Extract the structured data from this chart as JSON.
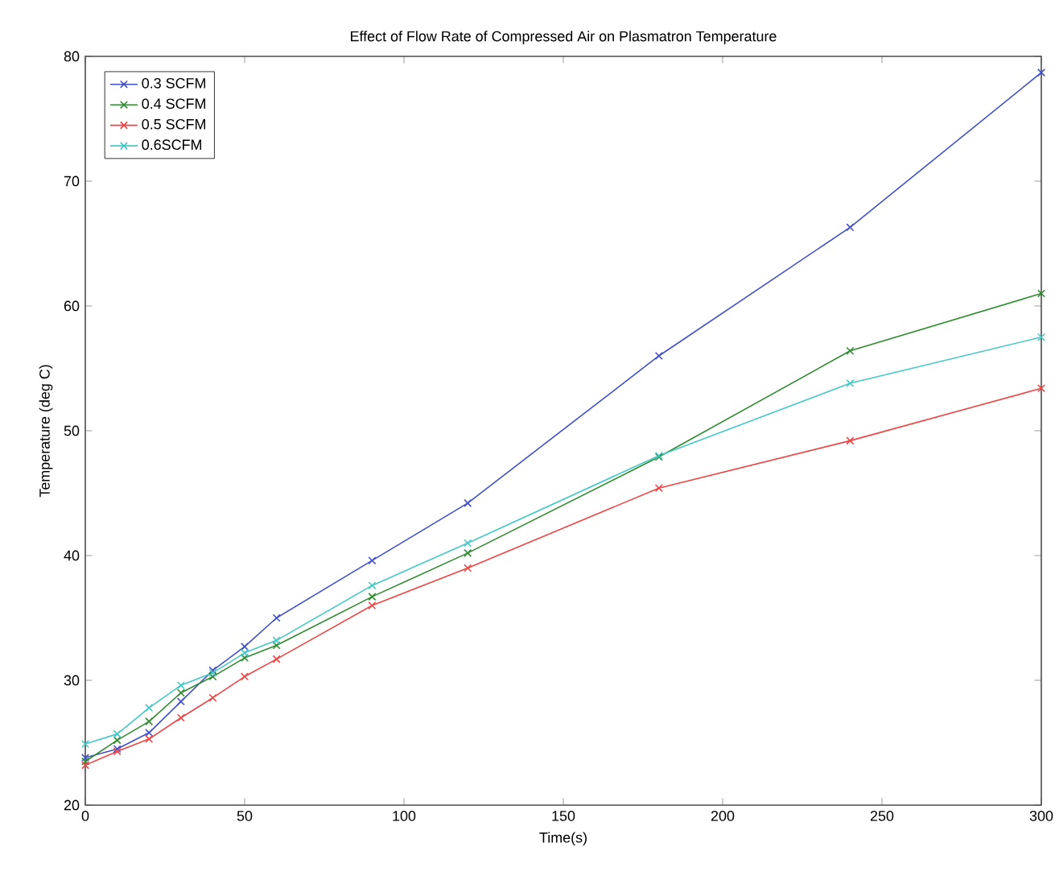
{
  "chart_data": {
    "type": "line",
    "title": "Effect of Flow Rate of Compressed Air on Plasmatron Temperature",
    "xlabel": "Time(s)",
    "ylabel": "Temperature (deg C)",
    "x": [
      0,
      10,
      20,
      30,
      40,
      50,
      60,
      90,
      120,
      180,
      240,
      300
    ],
    "series": [
      {
        "name": "0.3 SCFM",
        "color": "#4050c8",
        "values": [
          23.8,
          24.5,
          25.8,
          28.3,
          30.8,
          32.7,
          35.0,
          39.6,
          44.2,
          56.0,
          66.3,
          78.7
        ]
      },
      {
        "name": "0.4 SCFM",
        "color": "#2e8b2e",
        "values": [
          23.5,
          25.2,
          26.7,
          29.0,
          30.3,
          31.8,
          32.8,
          36.7,
          40.2,
          47.9,
          56.4,
          61.0
        ]
      },
      {
        "name": "0.5 SCFM",
        "color": "#ee4444",
        "values": [
          23.2,
          24.3,
          25.3,
          27.0,
          28.6,
          30.3,
          31.7,
          36.0,
          39.0,
          45.4,
          49.2,
          53.4
        ]
      },
      {
        "name": "0.6SCFM",
        "color": "#44c8c8",
        "values": [
          24.9,
          25.7,
          27.8,
          29.6,
          30.6,
          32.2,
          33.2,
          37.6,
          41.0,
          48.0,
          53.8,
          57.5
        ]
      }
    ],
    "xlim": [
      0,
      300
    ],
    "ylim": [
      20,
      80
    ],
    "xticks": [
      0,
      50,
      100,
      150,
      200,
      250,
      300
    ],
    "yticks": [
      20,
      30,
      40,
      50,
      60,
      70,
      80
    ],
    "legend": "top left",
    "marker": "cross",
    "line_style": "solid",
    "grid": false
  }
}
